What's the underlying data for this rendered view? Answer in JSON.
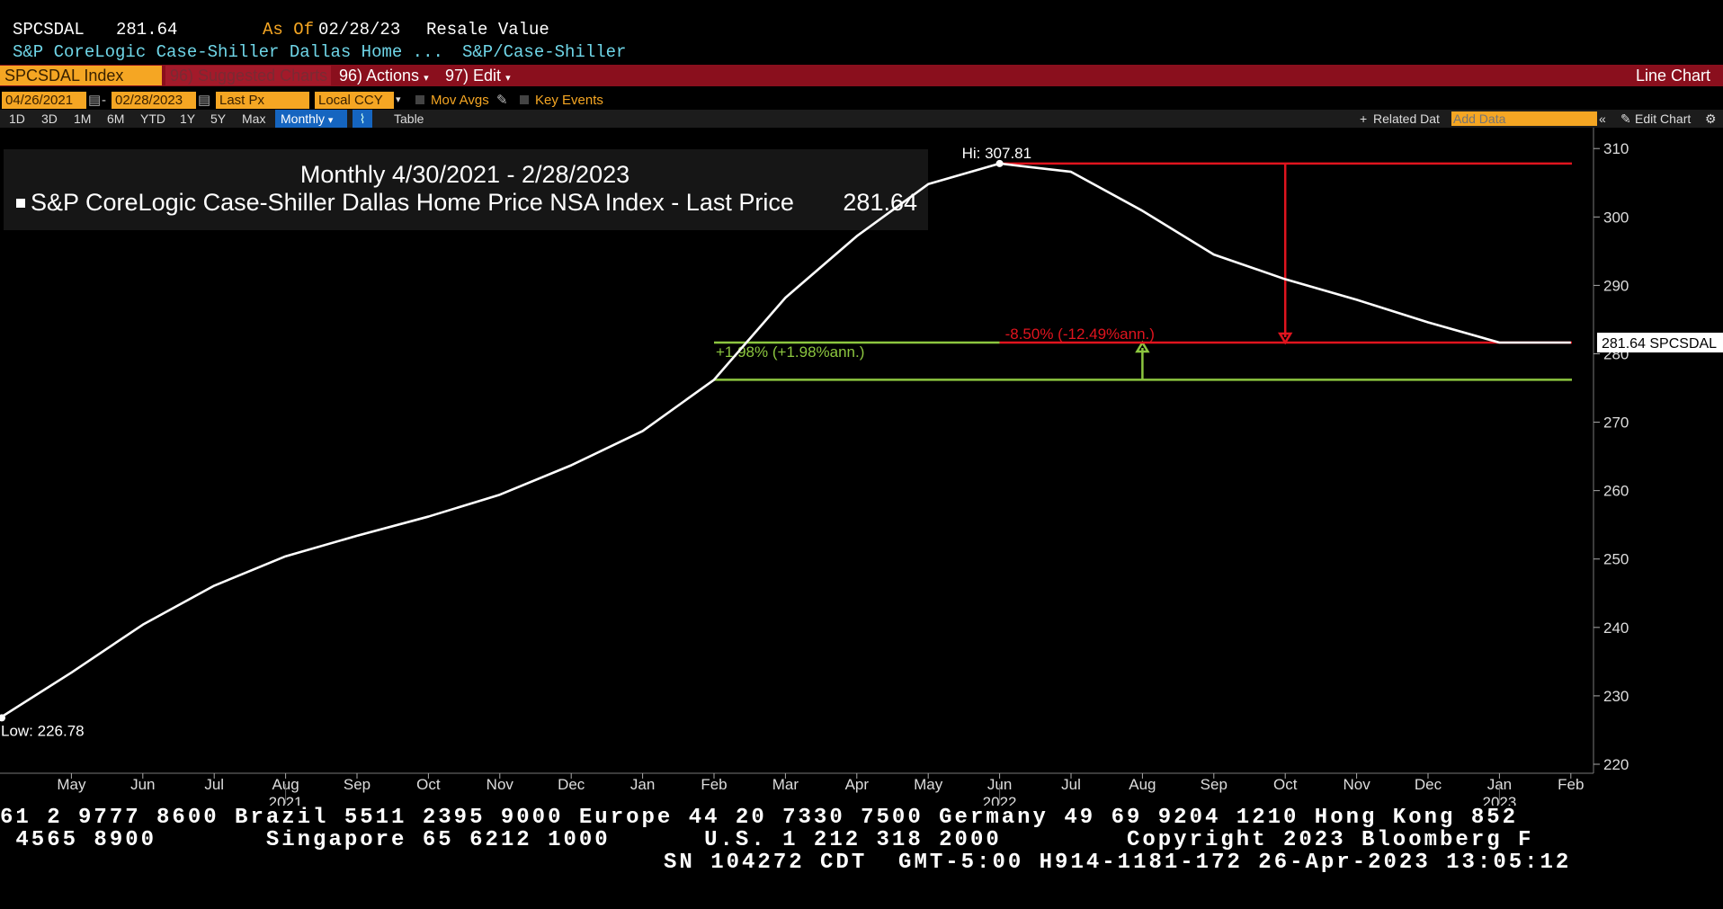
{
  "header": {
    "ticker": "SPCSDAL",
    "last_price": "281.64",
    "as_of_label": "As Of",
    "as_of_date": "02/28/23",
    "value_type": "Resale Value",
    "security_name": "S&P CoreLogic Case-Shiller Dallas Home ...",
    "source": "S&P/Case-Shiller"
  },
  "toolbar": {
    "security_field": "SPCSDAL Index",
    "suggested_charts": "96) Suggested Charts",
    "actions": "96) Actions",
    "edit": "97) Edit",
    "chart_type": "Line Chart",
    "start_date": "04/26/2021",
    "date_separator": "-",
    "end_date": "02/28/2023",
    "field": "Last Px",
    "currency": "Local CCY",
    "mov_avgs": "Mov Avgs",
    "key_events": "Key Events",
    "periods": [
      "1D",
      "3D",
      "1M",
      "6M",
      "YTD",
      "1Y",
      "5Y",
      "Max"
    ],
    "frequency": "Monthly",
    "table": "Table",
    "related_data": "Related Dat",
    "add_data_placeholder": "Add Data",
    "edit_chart": "Edit Chart"
  },
  "colors": {
    "background": "#000000",
    "series_line": "#ffffff",
    "red_annotation": "#e0141e",
    "green_annotation": "#8cc63f",
    "toolbar_red": "#8a0f1d",
    "field_orange": "#f5a623",
    "header_cyan": "#6fd6e8"
  },
  "chart_data": {
    "type": "line",
    "title": "Monthly 4/30/2021 - 2/28/2023",
    "series": [
      {
        "name": "S&P CoreLogic Case-Shiller Dallas Home Price NSA Index - Last Price",
        "legend_value": "281.64",
        "x": [
          "2021-04",
          "2021-05",
          "2021-06",
          "2021-07",
          "2021-08",
          "2021-09",
          "2021-10",
          "2021-11",
          "2021-12",
          "2022-01",
          "2022-02",
          "2022-03",
          "2022-04",
          "2022-05",
          "2022-06",
          "2022-07",
          "2022-08",
          "2022-09",
          "2022-10",
          "2022-11",
          "2022-12",
          "2023-01",
          "2023-02"
        ],
        "values": [
          226.78,
          233.4,
          240.4,
          246.1,
          250.4,
          253.4,
          256.2,
          259.4,
          263.7,
          268.7,
          276.2,
          288.2,
          297.2,
          304.8,
          307.81,
          306.6,
          300.9,
          294.5,
          290.9,
          287.9,
          284.6,
          281.64,
          281.64
        ]
      }
    ],
    "x_tick_labels": [
      "May",
      "Jun",
      "Jul",
      "Aug",
      "Sep",
      "Oct",
      "Nov",
      "Dec",
      "Jan",
      "Feb",
      "Mar",
      "Apr",
      "May",
      "Jun",
      "Jul",
      "Aug",
      "Sep",
      "Oct",
      "Nov",
      "Dec",
      "Jan",
      "Feb"
    ],
    "x_year_labels": [
      {
        "label": "2021",
        "month": "2021-08"
      },
      {
        "label": "2022",
        "month": "2022-06"
      },
      {
        "label": "2023",
        "month": "2023-01"
      }
    ],
    "y_ticks": [
      220,
      230,
      240,
      250,
      260,
      270,
      280,
      290,
      300,
      310
    ],
    "ylim": [
      220,
      312
    ],
    "y_axis_position": "right",
    "grid": false,
    "annotations": {
      "high": {
        "label": "Hi: 307.81",
        "month": "2022-06",
        "value": 307.81
      },
      "low": {
        "label": "Low: 226.78",
        "month": "2021-04",
        "value": 226.78
      },
      "last_price_tag": "281.64 SPCSDAL",
      "red_change": {
        "label": "-8.50% (-12.49%ann.)",
        "from_value": 307.81,
        "to_value": 281.64,
        "from_month": "2022-06",
        "arrow_month": "2022-10"
      },
      "green_change": {
        "label": "+1.98% (+1.98%ann.)",
        "from_value": 276.2,
        "to_value": 281.64,
        "from_month": "2022-02",
        "arrow_month": "2022-08"
      }
    }
  },
  "footer": {
    "line1": "61 2 9777 8600 Brazil 5511 2395 9000 Europe 44 20 7330 7500 Germany 49 69 9204 1210 Hong Kong 852",
    "line2": " 4565 8900       Singapore 65 6212 1000      U.S. 1 212 318 2000        Copyright 2023 Bloomberg F",
    "line3": "SN 104272 CDT  GMT-5:00 H914-1181-172 26-Apr-2023 13:05:12"
  }
}
